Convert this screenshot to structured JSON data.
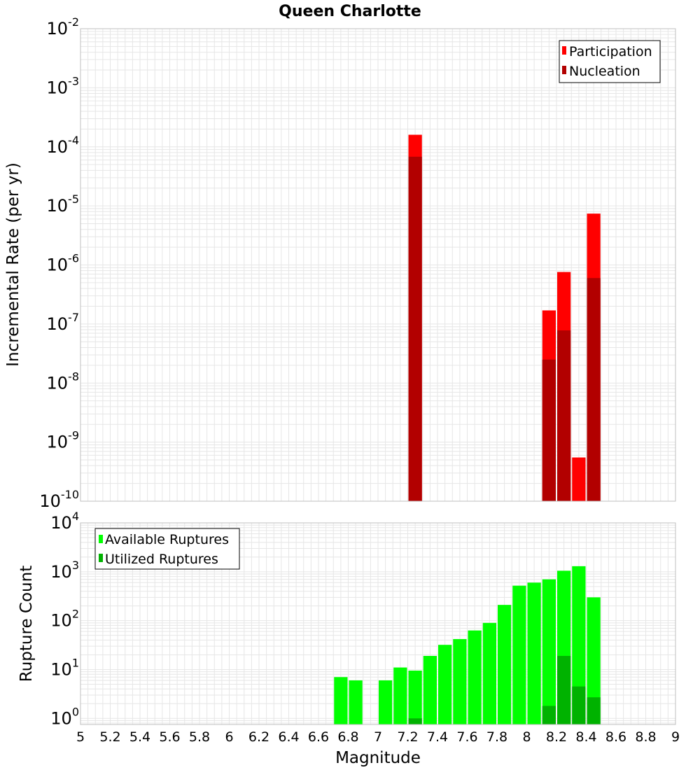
{
  "chart_title": "Queen Charlotte",
  "xlabel": "Magnitude",
  "xlim": [
    5,
    9
  ],
  "xticks": [
    "5",
    "5.2",
    "5.4",
    "5.6",
    "5.8",
    "6",
    "6.2",
    "6.4",
    "6.6",
    "6.8",
    "7",
    "7.2",
    "7.4",
    "7.6",
    "7.8",
    "8",
    "8.2",
    "8.4",
    "8.6",
    "8.8",
    "9"
  ],
  "colors": {
    "participation": "#ff0000",
    "nucleation": "#b20000",
    "available": "#00ff00",
    "utilized": "#00b200",
    "grid": "#e6e6e6",
    "frame": "#bfbfbf"
  },
  "chart_data": [
    {
      "type": "bar",
      "name": "rate-panel",
      "ylabel": "Incremental Rate (per yr)",
      "yscale": "log",
      "ylim": [
        1e-10,
        0.01
      ],
      "yticks": [
        {
          "base": "10",
          "exp": "-10"
        },
        {
          "base": "10",
          "exp": "-9"
        },
        {
          "base": "10",
          "exp": "-8"
        },
        {
          "base": "10",
          "exp": "-7"
        },
        {
          "base": "10",
          "exp": "-6"
        },
        {
          "base": "10",
          "exp": "-5"
        },
        {
          "base": "10",
          "exp": "-4"
        },
        {
          "base": "10",
          "exp": "-3"
        },
        {
          "base": "10",
          "exp": "-2"
        }
      ],
      "legend": [
        "Participation",
        "Nucleation"
      ],
      "legend_position": "top-right",
      "series": [
        {
          "name": "Participation",
          "x": [
            7.25,
            8.15,
            8.25,
            8.35,
            8.45
          ],
          "values": [
            0.00016,
            1.7e-07,
            7.6e-07,
            5.5e-10,
            7.4e-06
          ]
        },
        {
          "name": "Nucleation",
          "x": [
            7.25,
            8.15,
            8.25,
            8.45
          ],
          "values": [
            6.8e-05,
            2.5e-08,
            7.8e-08,
            6e-07
          ]
        }
      ]
    },
    {
      "type": "bar",
      "name": "count-panel",
      "ylabel": "Rupture Count",
      "yscale": "log",
      "ylim": [
        0.75,
        10000
      ],
      "yticks": [
        {
          "base": "10",
          "exp": "0"
        },
        {
          "base": "10",
          "exp": "1"
        },
        {
          "base": "10",
          "exp": "2"
        },
        {
          "base": "10",
          "exp": "3"
        },
        {
          "base": "10",
          "exp": "4"
        }
      ],
      "legend": [
        "Available Ruptures",
        "Utilized Ruptures"
      ],
      "legend_position": "top-left",
      "series": [
        {
          "name": "Available Ruptures",
          "x": [
            6.75,
            6.85,
            7.05,
            7.15,
            7.25,
            7.35,
            7.45,
            7.55,
            7.65,
            7.75,
            7.85,
            7.95,
            8.05,
            8.15,
            8.25,
            8.35,
            8.45
          ],
          "values": [
            7,
            6,
            6,
            11,
            9.5,
            19,
            32,
            42,
            63,
            90,
            210,
            520,
            600,
            700,
            1050,
            1300,
            300
          ]
        },
        {
          "name": "Utilized Ruptures",
          "x": [
            7.25,
            8.15,
            8.25,
            8.35,
            8.45
          ],
          "values": [
            1,
            1.8,
            19,
            4.5,
            2.7
          ]
        }
      ]
    }
  ]
}
